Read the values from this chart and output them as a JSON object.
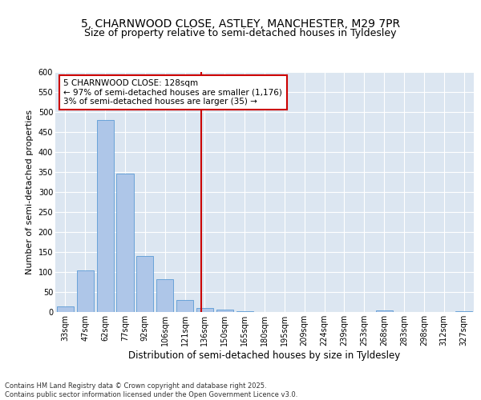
{
  "title": "5, CHARNWOOD CLOSE, ASTLEY, MANCHESTER, M29 7PR",
  "subtitle": "Size of property relative to semi-detached houses in Tyldesley",
  "xlabel": "Distribution of semi-detached houses by size in Tyldesley",
  "ylabel": "Number of semi-detached properties",
  "categories": [
    "33sqm",
    "47sqm",
    "62sqm",
    "77sqm",
    "92sqm",
    "106sqm",
    "121sqm",
    "136sqm",
    "150sqm",
    "165sqm",
    "180sqm",
    "195sqm",
    "209sqm",
    "224sqm",
    "239sqm",
    "253sqm",
    "268sqm",
    "283sqm",
    "298sqm",
    "312sqm",
    "327sqm"
  ],
  "bar_heights": [
    15,
    105,
    480,
    347,
    140,
    83,
    30,
    11,
    6,
    3,
    0,
    0,
    0,
    0,
    0,
    0,
    4,
    0,
    0,
    0,
    3
  ],
  "bar_color": "#aec6e8",
  "bar_edge_color": "#5b9bd5",
  "vline_color": "#cc0000",
  "annotation_text": "5 CHARNWOOD CLOSE: 128sqm\n← 97% of semi-detached houses are smaller (1,176)\n3% of semi-detached houses are larger (35) →",
  "annotation_box_color": "#ffffff",
  "annotation_box_edge_color": "#cc0000",
  "ylim": [
    0,
    600
  ],
  "yticks": [
    0,
    50,
    100,
    150,
    200,
    250,
    300,
    350,
    400,
    450,
    500,
    550,
    600
  ],
  "plot_bg_color": "#dce6f1",
  "footer": "Contains HM Land Registry data © Crown copyright and database right 2025.\nContains public sector information licensed under the Open Government Licence v3.0.",
  "title_fontsize": 10,
  "subtitle_fontsize": 9,
  "xlabel_fontsize": 8.5,
  "ylabel_fontsize": 8,
  "tick_fontsize": 7,
  "annotation_fontsize": 7.5,
  "footer_fontsize": 6
}
